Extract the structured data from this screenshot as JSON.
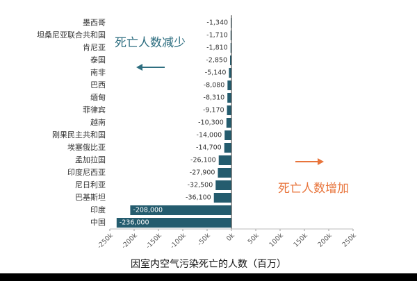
{
  "chart_data": {
    "type": "hbar",
    "categories": [
      "墨西哥",
      "坦桑尼亚联合共和国",
      "肯尼亚",
      "泰国",
      "南非",
      "巴西",
      "缅甸",
      "菲律宾",
      "越南",
      "刚果民主共和国",
      "埃塞俄比亚",
      "孟加拉国",
      "印度尼西亚",
      "尼日利亚",
      "巴基斯坦",
      "印度",
      "中国"
    ],
    "values": [
      -1340,
      -1710,
      -1810,
      -2850,
      -5140,
      -8080,
      -8310,
      -9170,
      -10300,
      -14000,
      -14700,
      -26100,
      -27900,
      -32500,
      -36100,
      -208000,
      -236000
    ],
    "value_labels": [
      "-1,340",
      "-1,710",
      "-1,810",
      "-2,850",
      "-5,140",
      "-8,080",
      "-8,310",
      "-9,170",
      "-10,300",
      "-14,000",
      "-14,700",
      "-26,100",
      "-27,900",
      "-32,500",
      "-36,100",
      "-208,000",
      "-236,000"
    ],
    "color": "#245c6e",
    "xlim": [
      -250000,
      250000
    ],
    "xticks": [
      {
        "value": -250000,
        "label": "-250k"
      },
      {
        "value": -200000,
        "label": "-200k"
      },
      {
        "value": -150000,
        "label": "-150k"
      },
      {
        "value": -100000,
        "label": "-100k"
      },
      {
        "value": -50000,
        "label": "-50k"
      },
      {
        "value": 0,
        "label": "0k"
      },
      {
        "value": 50000,
        "label": "50k"
      },
      {
        "value": 100000,
        "label": "100k"
      },
      {
        "value": 150000,
        "label": "150k"
      },
      {
        "value": 200000,
        "label": "200k"
      },
      {
        "value": 250000,
        "label": "250k"
      }
    ],
    "xlabel": "因室内空气污染死亡的人数（百万）",
    "annotations": [
      "死亡人数减少",
      "死亡人数增加"
    ]
  }
}
